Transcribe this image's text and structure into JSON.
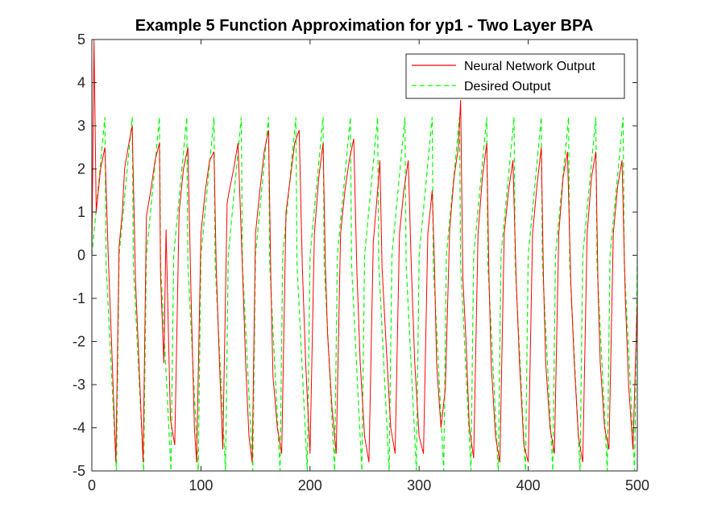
{
  "chart_data": {
    "type": "line",
    "title": "Example 5 Function Approximation for yp1 - Two Layer BPA",
    "xlabel": "",
    "ylabel": "",
    "xlim": [
      0,
      500
    ],
    "ylim": [
      -5,
      5
    ],
    "x_ticks": [
      "0",
      "100",
      "200",
      "300",
      "400",
      "500"
    ],
    "y_ticks": [
      "-5",
      "-4",
      "-3",
      "-2",
      "-1",
      "0",
      "1",
      "2",
      "3",
      "4",
      "5"
    ],
    "grid": false,
    "legend_position": "top-right",
    "signal": {
      "period": 25,
      "peak": 3.2,
      "trough": -5.0
    },
    "series": [
      {
        "name": "Neural Network Output",
        "color": "#ff0000",
        "style": "solid",
        "x": [
          0,
          2,
          4,
          8,
          12,
          15,
          18,
          22,
          25,
          28,
          30,
          34,
          37,
          40,
          44,
          47,
          50,
          54,
          58,
          62,
          63,
          66,
          68,
          72,
          76,
          80,
          84,
          88,
          91,
          94,
          96,
          100,
          104,
          108,
          112,
          114,
          117,
          120,
          124,
          126,
          130,
          134,
          138,
          141,
          144,
          147,
          150,
          154,
          158,
          162,
          164,
          166,
          170,
          174,
          178,
          182,
          186,
          190,
          193,
          196,
          200,
          204,
          208,
          212,
          214,
          216,
          220,
          224,
          228,
          232,
          236,
          240,
          243,
          246,
          250,
          254,
          258,
          262,
          264,
          266,
          270,
          274,
          278,
          282,
          286,
          290,
          293,
          296,
          300,
          304,
          308,
          312,
          314,
          316,
          320,
          324,
          328,
          332,
          336,
          338,
          340,
          343,
          346,
          350,
          354,
          358,
          362,
          364,
          366,
          370,
          374,
          378,
          382,
          386,
          389,
          392,
          396,
          400,
          404,
          408,
          412,
          414,
          416,
          420,
          424,
          428,
          432,
          436,
          439,
          442,
          446,
          450,
          454,
          458,
          462,
          464,
          466,
          470,
          474,
          478,
          482,
          486,
          489,
          492,
          496,
          500
        ],
        "y": [
          0.0,
          5.0,
          1.0,
          2.0,
          2.5,
          0.0,
          -2.0,
          -4.8,
          0.2,
          1.0,
          2.0,
          2.6,
          3.0,
          -0.6,
          -3.0,
          -4.8,
          0.9,
          1.5,
          2.2,
          2.6,
          -0.5,
          -2.5,
          0.6,
          -3.8,
          -4.4,
          1.0,
          2.0,
          2.5,
          -1.0,
          -4.0,
          -4.8,
          0.5,
          1.5,
          2.2,
          2.4,
          -0.3,
          -2.5,
          -4.5,
          1.2,
          1.5,
          2.0,
          2.6,
          -0.3,
          -2.5,
          -4.2,
          -4.8,
          0.5,
          1.5,
          2.4,
          2.9,
          -0.5,
          -2.8,
          -4.0,
          -4.6,
          1.0,
          1.8,
          2.6,
          2.9,
          -0.3,
          -2.5,
          -4.6,
          0.5,
          1.8,
          2.6,
          -0.2,
          -1.8,
          -3.5,
          -4.6,
          0.5,
          1.5,
          2.2,
          2.7,
          -0.4,
          -2.5,
          -4.2,
          -4.8,
          0.3,
          1.5,
          2.2,
          -0.3,
          -2.2,
          -4.0,
          -4.6,
          0.5,
          1.5,
          2.2,
          -0.4,
          -2.5,
          -4.2,
          -4.6,
          0.5,
          1.5,
          -0.2,
          -2.5,
          -4.0,
          -3.1,
          0.6,
          1.8,
          2.5,
          3.6,
          -0.5,
          -2.0,
          -4.0,
          -4.7,
          0.5,
          1.8,
          2.6,
          -0.5,
          -2.5,
          -4.2,
          -4.8,
          0.5,
          1.5,
          2.2,
          -0.6,
          -2.5,
          -4.4,
          -4.8,
          0.5,
          1.6,
          2.5,
          -0.6,
          -2.5,
          -4.0,
          -4.6,
          0.5,
          1.8,
          2.4,
          -0.6,
          -2.4,
          -4.2,
          -4.8,
          0.5,
          1.8,
          2.4,
          -0.8,
          -2.5,
          -4.0,
          -4.5,
          0.5,
          1.6,
          2.2,
          -1.0,
          -3.0,
          -4.5,
          -1.0
        ]
      },
      {
        "name": "Desired Output",
        "color": "#00ff00",
        "style": "dashed"
      }
    ]
  }
}
